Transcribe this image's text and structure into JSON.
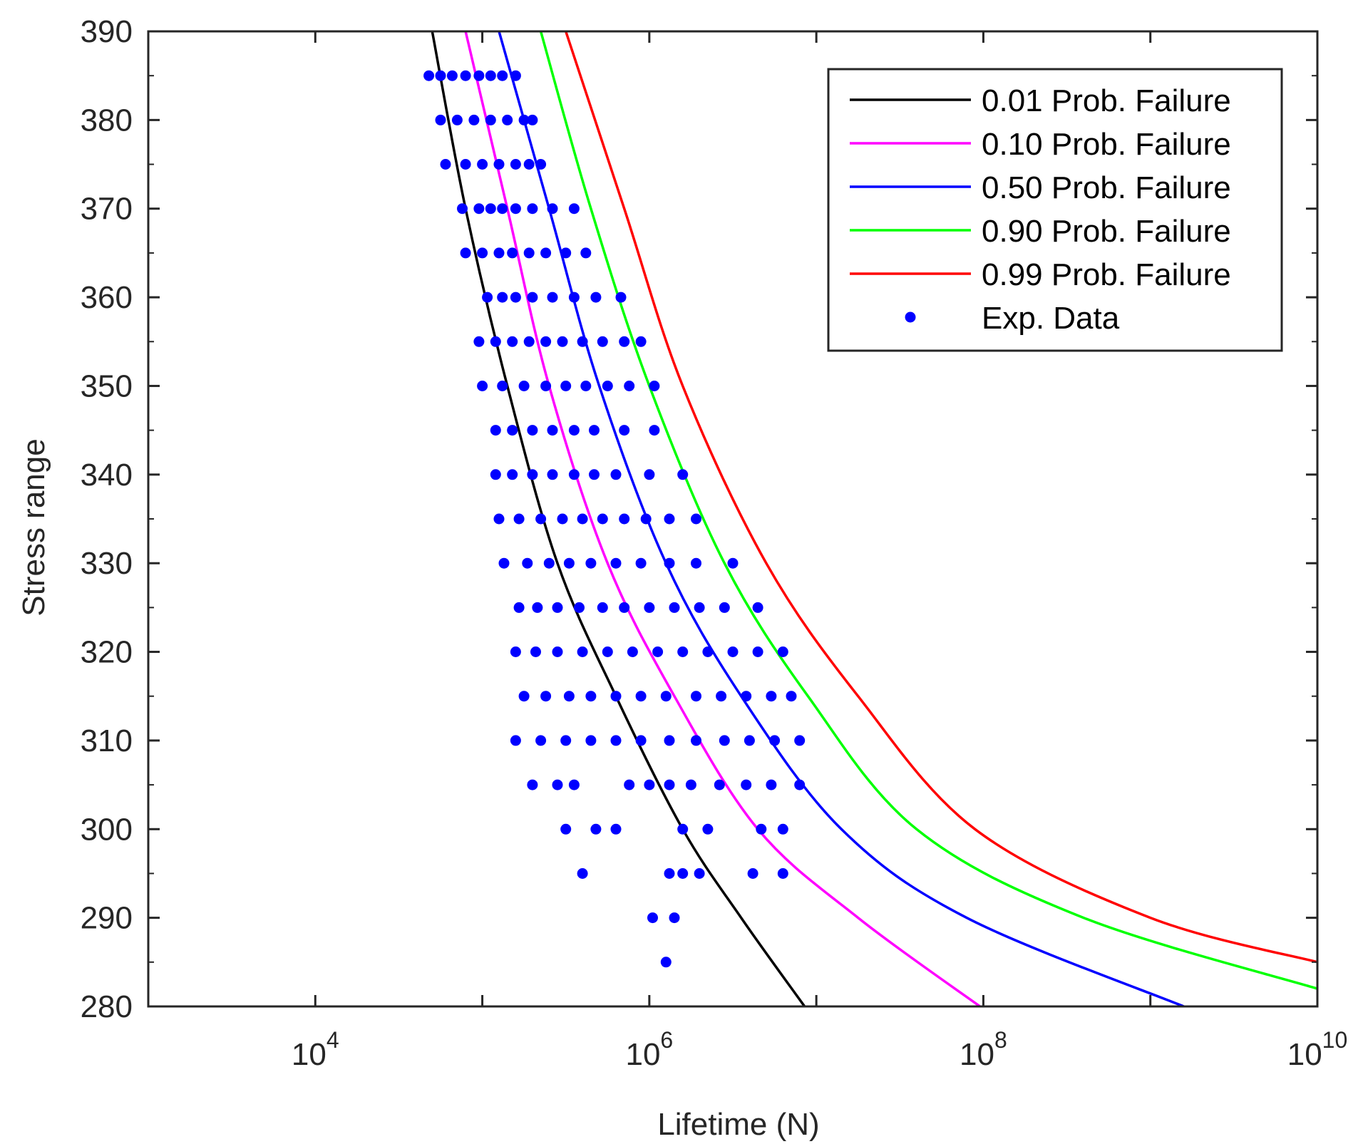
{
  "chart_data": {
    "type": "line",
    "title": "",
    "xlabel": "Lifetime (N)",
    "ylabel": "Stress range",
    "xscale": "log",
    "xlim_exp": [
      3,
      10
    ],
    "ylim": [
      280,
      390
    ],
    "grid": false,
    "legend_position": "top-right",
    "x_ticks": [
      {
        "base": "10",
        "exp": "4",
        "value": 10000
      },
      {
        "base": "10",
        "exp": "6",
        "value": 1000000
      },
      {
        "base": "10",
        "exp": "8",
        "value": 100000000
      },
      {
        "base": "10",
        "exp": "10",
        "value": 10000000000
      }
    ],
    "y_ticks": [
      "280",
      "290",
      "300",
      "310",
      "320",
      "330",
      "340",
      "350",
      "360",
      "370",
      "380",
      "390"
    ],
    "series": [
      {
        "name": "0.01 Prob. Failure",
        "color": "#000000",
        "log10_x": [
          4.7,
          4.9,
          5.15,
          5.45,
          5.8,
          6.2,
          6.55,
          6.93
        ],
        "y": [
          390,
          370,
          350,
          330,
          315,
          300,
          290,
          280
        ]
      },
      {
        "name": "0.10 Prob. Failure",
        "color": "#ff00ff",
        "log10_x": [
          4.9,
          5.15,
          5.4,
          5.75,
          6.15,
          6.65,
          7.25,
          7.98
        ],
        "y": [
          390,
          370,
          350,
          330,
          315,
          300,
          290,
          280
        ]
      },
      {
        "name": "0.50 Prob. Failure",
        "color": "#0000ff",
        "log10_x": [
          5.1,
          5.4,
          5.7,
          6.1,
          6.55,
          7.15,
          7.9,
          9.2
        ],
        "y": [
          390,
          370,
          350,
          330,
          315,
          300,
          290,
          280
        ]
      },
      {
        "name": "0.90 Prob. Failure",
        "color": "#00ff00",
        "log10_x": [
          5.35,
          5.65,
          6.0,
          6.45,
          6.95,
          7.6,
          8.6,
          10.0
        ],
        "y": [
          390,
          370,
          350,
          330,
          315,
          300,
          290,
          282
        ]
      },
      {
        "name": "0.99 Prob. Failure",
        "color": "#ff0000",
        "log10_x": [
          5.5,
          5.85,
          6.2,
          6.7,
          7.25,
          7.95,
          9.0,
          10.0
        ],
        "y": [
          390,
          370,
          350,
          330,
          315,
          300,
          290,
          285
        ]
      }
    ],
    "scatter": {
      "name": "Exp. Data",
      "color": "#0000ff",
      "points": [
        {
          "y": 385,
          "log10_x": [
            4.68,
            4.75,
            4.82,
            4.9,
            4.98,
            5.05,
            5.12,
            5.2
          ]
        },
        {
          "y": 380,
          "log10_x": [
            4.75,
            4.85,
            4.95,
            5.05,
            5.15,
            5.25,
            5.3
          ]
        },
        {
          "y": 375,
          "log10_x": [
            4.78,
            4.9,
            5.0,
            5.1,
            5.2,
            5.28,
            5.35
          ]
        },
        {
          "y": 370,
          "log10_x": [
            4.88,
            4.98,
            5.05,
            5.12,
            5.2,
            5.3,
            5.42,
            5.55
          ]
        },
        {
          "y": 365,
          "log10_x": [
            4.9,
            5.0,
            5.1,
            5.18,
            5.28,
            5.38,
            5.5,
            5.62
          ]
        },
        {
          "y": 360,
          "log10_x": [
            5.03,
            5.12,
            5.2,
            5.3,
            5.42,
            5.55,
            5.68,
            5.83
          ]
        },
        {
          "y": 355,
          "log10_x": [
            4.98,
            5.08,
            5.18,
            5.28,
            5.38,
            5.48,
            5.6,
            5.72,
            5.85,
            5.95
          ]
        },
        {
          "y": 350,
          "log10_x": [
            5.0,
            5.12,
            5.25,
            5.38,
            5.5,
            5.62,
            5.75,
            5.88,
            6.03
          ]
        },
        {
          "y": 345,
          "log10_x": [
            5.08,
            5.18,
            5.3,
            5.42,
            5.55,
            5.67,
            5.85,
            6.03
          ]
        },
        {
          "y": 340,
          "log10_x": [
            5.08,
            5.18,
            5.3,
            5.42,
            5.55,
            5.67,
            5.8,
            6.0,
            6.2
          ]
        },
        {
          "y": 335,
          "log10_x": [
            5.1,
            5.22,
            5.35,
            5.48,
            5.6,
            5.72,
            5.85,
            5.98,
            6.12,
            6.28
          ]
        },
        {
          "y": 330,
          "log10_x": [
            5.13,
            5.27,
            5.4,
            5.52,
            5.65,
            5.8,
            5.95,
            6.12,
            6.28,
            6.5
          ]
        },
        {
          "y": 325,
          "log10_x": [
            5.22,
            5.33,
            5.45,
            5.58,
            5.72,
            5.85,
            6.0,
            6.15,
            6.3,
            6.45,
            6.65
          ]
        },
        {
          "y": 320,
          "log10_x": [
            5.2,
            5.32,
            5.45,
            5.6,
            5.75,
            5.9,
            6.05,
            6.2,
            6.35,
            6.5,
            6.65,
            6.8
          ]
        },
        {
          "y": 315,
          "log10_x": [
            5.25,
            5.38,
            5.52,
            5.65,
            5.8,
            5.95,
            6.1,
            6.28,
            6.43,
            6.58,
            6.73,
            6.85
          ]
        },
        {
          "y": 310,
          "log10_x": [
            5.2,
            5.35,
            5.5,
            5.65,
            5.8,
            5.95,
            6.12,
            6.28,
            6.45,
            6.6,
            6.75,
            6.9
          ]
        },
        {
          "y": 305,
          "log10_x": [
            5.3,
            5.45,
            5.55,
            5.88,
            6.0,
            6.12,
            6.25,
            6.42,
            6.58,
            6.73,
            6.9
          ]
        },
        {
          "y": 300,
          "log10_x": [
            5.5,
            5.68,
            5.8,
            6.2,
            6.35,
            6.67,
            6.8
          ]
        },
        {
          "y": 295,
          "log10_x": [
            5.6,
            6.12,
            6.2,
            6.3,
            6.62,
            6.8
          ]
        },
        {
          "y": 290,
          "log10_x": [
            6.02,
            6.15
          ]
        },
        {
          "y": 285,
          "log10_x": [
            6.1
          ]
        }
      ]
    }
  }
}
